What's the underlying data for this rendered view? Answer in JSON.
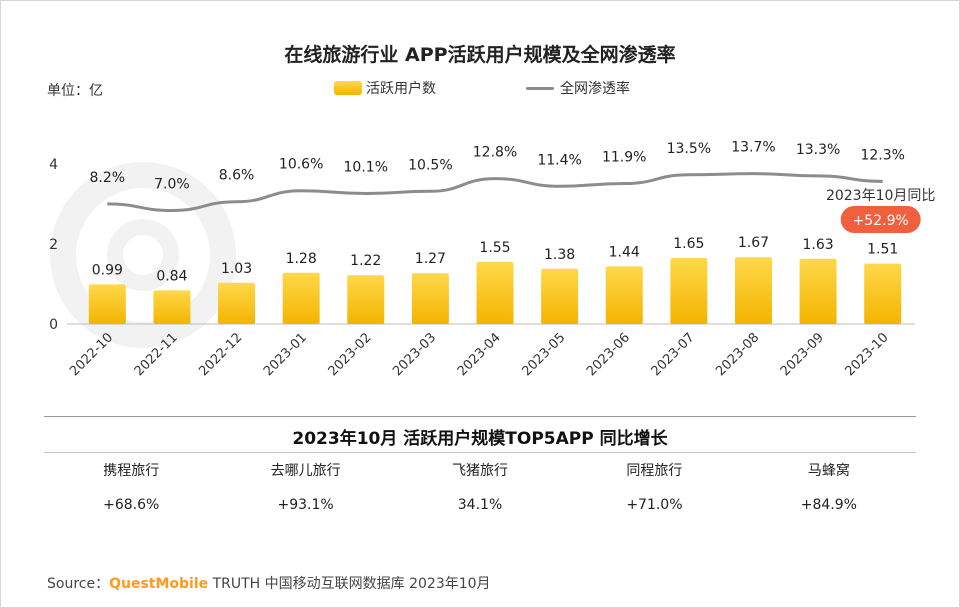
{
  "header": {
    "title": "在线旅游行业 APP活跃用户规模及全网渗透率",
    "unit": "单位：亿"
  },
  "legend": {
    "bar_label": "活跃用户数",
    "line_label": "全网渗透率"
  },
  "chart_data": {
    "type": "bar",
    "categories": [
      "2022-10",
      "2022-11",
      "2022-12",
      "2023-01",
      "2023-02",
      "2023-03",
      "2023-04",
      "2023-05",
      "2023-06",
      "2023-07",
      "2023-08",
      "2023-09",
      "2023-10"
    ],
    "series": [
      {
        "name": "活跃用户数",
        "type": "bar",
        "values": [
          0.99,
          0.84,
          1.03,
          1.28,
          1.22,
          1.27,
          1.55,
          1.38,
          1.44,
          1.65,
          1.67,
          1.63,
          1.51
        ],
        "value_labels": [
          "0.99",
          "0.84",
          "1.03",
          "1.28",
          "1.22",
          "1.27",
          "1.55",
          "1.38",
          "1.44",
          "1.65",
          "1.67",
          "1.63",
          "1.51"
        ]
      },
      {
        "name": "全网渗透率",
        "type": "line",
        "values": [
          8.2,
          7.0,
          8.6,
          10.6,
          10.1,
          10.5,
          12.8,
          11.4,
          11.9,
          13.5,
          13.7,
          13.3,
          12.3
        ],
        "value_labels": [
          "8.2%",
          "7.0%",
          "8.6%",
          "10.6%",
          "10.1%",
          "10.5%",
          "12.8%",
          "11.4%",
          "11.9%",
          "13.5%",
          "13.7%",
          "13.3%",
          "12.3%"
        ]
      }
    ],
    "y_ticks": [
      "0",
      "2",
      "4"
    ],
    "ylim": [
      0,
      4
    ],
    "colors": {
      "bar_top": "#ffd84a",
      "bar_bottom": "#f4b400",
      "line": "#8c8c8c",
      "badge": "#f0603e"
    },
    "annotation": {
      "text": "2023年10月同比",
      "badge": "+52.9%"
    }
  },
  "table": {
    "title": "2023年10月 活跃用户规模TOP5APP 同比增长",
    "apps": [
      {
        "name": "携程旅行",
        "growth": "+68.6%"
      },
      {
        "name": "去哪儿旅行",
        "growth": "+93.1%"
      },
      {
        "name": "飞猪旅行",
        "growth": "34.1%"
      },
      {
        "name": "同程旅行",
        "growth": "+71.0%"
      },
      {
        "name": "马蜂窝",
        "growth": "+84.9%"
      }
    ]
  },
  "footer": {
    "prefix": "Source：",
    "brand": "QuestMobile",
    "rest": " TRUTH 中国移动互联网数据库 2023年10月"
  }
}
